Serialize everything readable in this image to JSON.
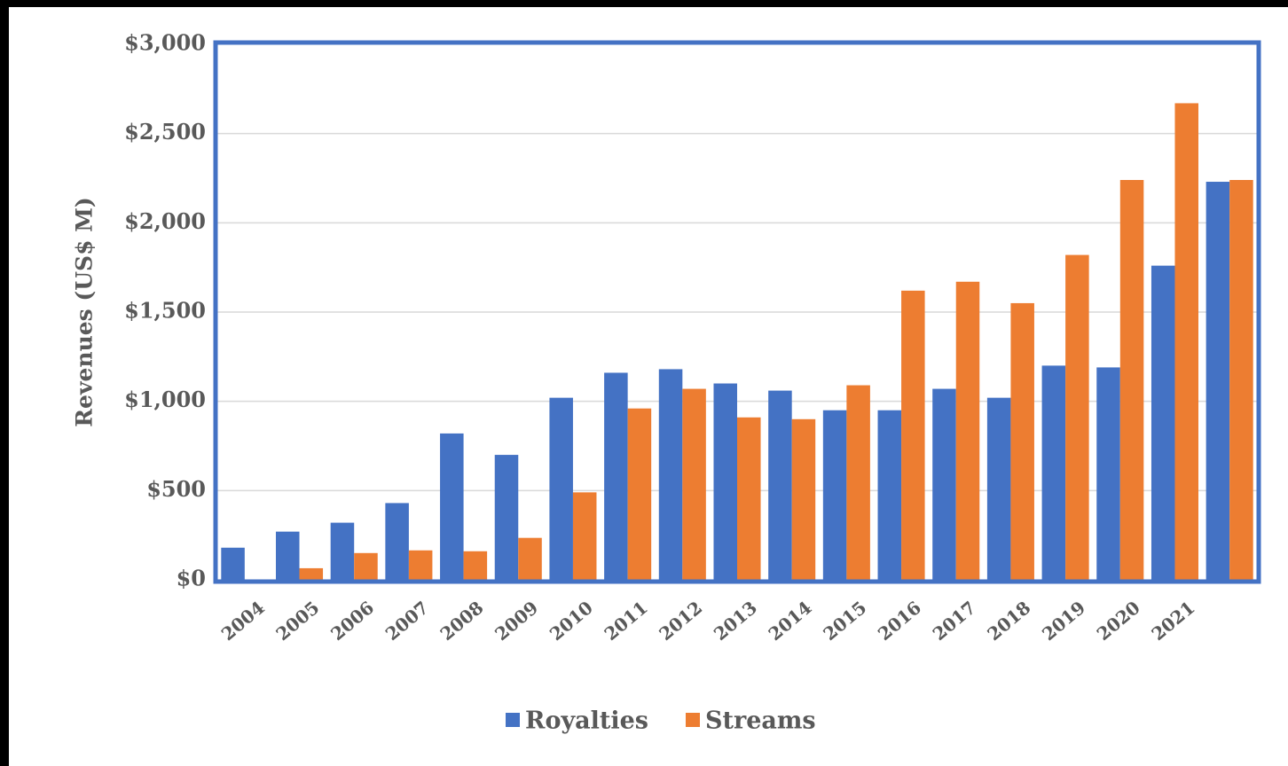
{
  "chart_data": {
    "type": "bar",
    "title": "",
    "xlabel": "",
    "ylabel": "Revenues (US$ M)",
    "ylim": [
      0,
      3000
    ],
    "yticks": [
      "$0",
      "$500",
      "$1,000",
      "$1,500",
      "$2,000",
      "$2,500",
      "$3,000"
    ],
    "categories": [
      "2004",
      "2005",
      "2006",
      "2007",
      "2008",
      "2009",
      "2010",
      "2011",
      "2012",
      "2013",
      "2014",
      "2015",
      "2016",
      "2017",
      "2018",
      "2019",
      "2020",
      "2021",
      ""
    ],
    "series": [
      {
        "name": "Royalties",
        "color": "#4472C4",
        "values": [
          180,
          270,
          320,
          430,
          820,
          700,
          1020,
          1160,
          1180,
          1100,
          1060,
          950,
          950,
          1070,
          1020,
          1200,
          1190,
          1760,
          2230
        ]
      },
      {
        "name": "Streams",
        "color": "#ED7D31",
        "values": [
          0,
          65,
          150,
          165,
          160,
          235,
          490,
          960,
          1070,
          910,
          900,
          1090,
          1620,
          1670,
          1550,
          1820,
          2240,
          2670,
          2240
        ]
      }
    ],
    "grid": true,
    "frame_color": "#4472C4",
    "legend_position": "bottom"
  }
}
